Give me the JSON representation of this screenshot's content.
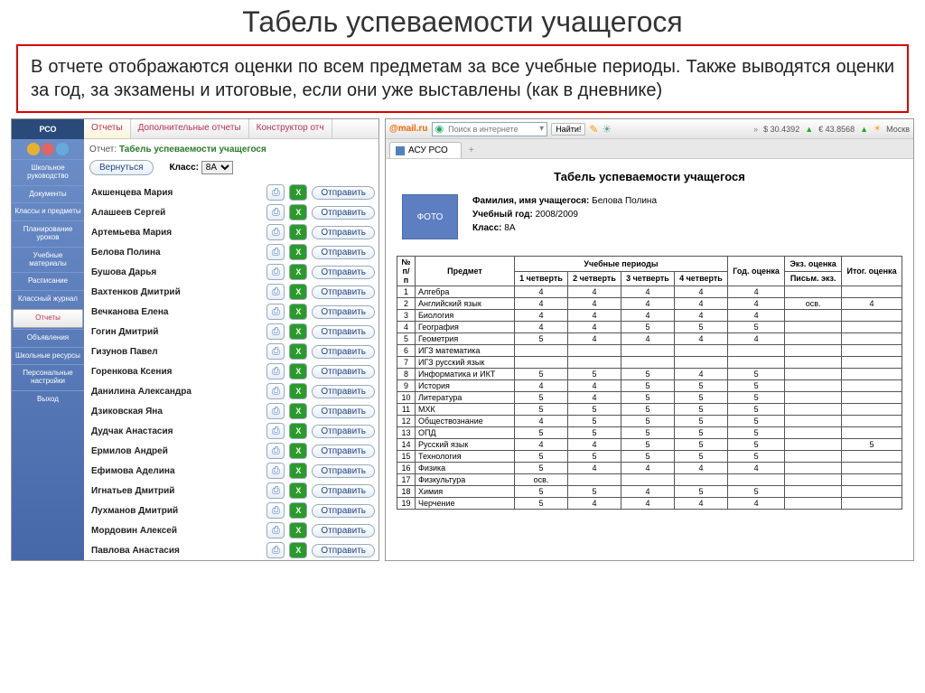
{
  "page_title": "Табель успеваемости учащегося",
  "description": "В отчете отображаются оценки по всем предметам за все учебные периоды. Также выводятся оценки за год, за экзамены и итоговые, если они уже выставлены (как в дневнике)",
  "sidebar": {
    "logo": "РСО",
    "items": [
      {
        "label": "Школьное руководство"
      },
      {
        "label": "Документы"
      },
      {
        "label": "Классы и предметы"
      },
      {
        "label": "Планирование уроков"
      },
      {
        "label": "Учебные материалы"
      },
      {
        "label": "Расписание"
      },
      {
        "label": "Классный журнал"
      },
      {
        "label": "Отчеты",
        "active": true
      },
      {
        "label": "Объявления"
      },
      {
        "label": "Школьные ресурсы"
      },
      {
        "label": "Персональные настройки"
      },
      {
        "label": "Выход"
      }
    ]
  },
  "top_tabs": [
    {
      "label": "Отчеты",
      "active": true
    },
    {
      "label": "Дополнительные отчеты"
    },
    {
      "label": "Конструктор отч"
    }
  ],
  "report_label": "Отчет:",
  "report_name": "Табель успеваемости учащегося",
  "back_btn": "Вернуться",
  "class_label": "Класс:",
  "class_value": "8А",
  "send_label": "Отправить",
  "students": [
    "Акшенцева Мария",
    "Алашеев Сергей",
    "Артемьева Мария",
    "Белова Полина",
    "Бушова Дарья",
    "Вахтенков Дмитрий",
    "Вечканова Елена",
    "Гогин Дмитрий",
    "Гизунов Павел",
    "Горенкова Ксения",
    "Данилина Александра",
    "Дзиковская Яна",
    "Дудчак Анастасия",
    "Ермилов Андрей",
    "Ефимова Аделина",
    "Игнатьев Дмитрий",
    "Лухманов Дмитрий",
    "Мордовин Алексей",
    "Павлова Анастасия"
  ],
  "browser": {
    "mail_logo": "@mail.ru",
    "search_placeholder": "Поиск в интернете",
    "find_btn": "Найти!",
    "usd": "$ 30.4392",
    "eur": "€ 43.8568",
    "weather": "Москв",
    "tab_name": "АСУ РСО"
  },
  "report": {
    "title": "Табель успеваемости учащегося",
    "photo": "ФОТО",
    "name_lbl": "Фамилия, имя учащегося:",
    "name_val": "Белова Полина",
    "year_lbl": "Учебный год:",
    "year_val": "2008/2009",
    "class_lbl": "Класс:",
    "class_val": "8А"
  },
  "table": {
    "headers": {
      "num": "№ п/п",
      "subject": "Предмет",
      "periods": "Учебные периоды",
      "q1": "1 четверть",
      "q2": "2 четверть",
      "q3": "3 четверть",
      "q4": "4 четверть",
      "year": "Год. оценка",
      "exam": "Экз. оценка",
      "exam_sub": "Письм. экз.",
      "final": "Итог. оценка"
    },
    "rows": [
      {
        "n": "1",
        "s": "Алгебра",
        "g": [
          "4",
          "4",
          "4",
          "4",
          "4",
          "",
          ""
        ]
      },
      {
        "n": "2",
        "s": "Английский язык",
        "g": [
          "4",
          "4",
          "4",
          "4",
          "4",
          "осв.",
          "4"
        ]
      },
      {
        "n": "3",
        "s": "Биология",
        "g": [
          "4",
          "4",
          "4",
          "4",
          "4",
          "",
          ""
        ]
      },
      {
        "n": "4",
        "s": "География",
        "g": [
          "4",
          "4",
          "5",
          "5",
          "5",
          "",
          ""
        ]
      },
      {
        "n": "5",
        "s": "Геометрия",
        "g": [
          "5",
          "4",
          "4",
          "4",
          "4",
          "",
          ""
        ]
      },
      {
        "n": "6",
        "s": "ИГЗ математика",
        "g": [
          "",
          "",
          "",
          "",
          "",
          "",
          ""
        ]
      },
      {
        "n": "7",
        "s": "ИГЗ русский язык",
        "g": [
          "",
          "",
          "",
          "",
          "",
          "",
          ""
        ]
      },
      {
        "n": "8",
        "s": "Информатика и ИКТ",
        "g": [
          "5",
          "5",
          "5",
          "4",
          "5",
          "",
          ""
        ]
      },
      {
        "n": "9",
        "s": "История",
        "g": [
          "4",
          "4",
          "5",
          "5",
          "5",
          "",
          ""
        ]
      },
      {
        "n": "10",
        "s": "Литература",
        "g": [
          "5",
          "4",
          "5",
          "5",
          "5",
          "",
          ""
        ]
      },
      {
        "n": "11",
        "s": "МХК",
        "g": [
          "5",
          "5",
          "5",
          "5",
          "5",
          "",
          ""
        ]
      },
      {
        "n": "12",
        "s": "Обществознание",
        "g": [
          "4",
          "5",
          "5",
          "5",
          "5",
          "",
          ""
        ]
      },
      {
        "n": "13",
        "s": "ОПД",
        "g": [
          "5",
          "5",
          "5",
          "5",
          "5",
          "",
          ""
        ]
      },
      {
        "n": "14",
        "s": "Русский язык",
        "g": [
          "4",
          "4",
          "5",
          "5",
          "5",
          "",
          "5"
        ]
      },
      {
        "n": "15",
        "s": "Технология",
        "g": [
          "5",
          "5",
          "5",
          "5",
          "5",
          "",
          ""
        ]
      },
      {
        "n": "16",
        "s": "Физика",
        "g": [
          "5",
          "4",
          "4",
          "4",
          "4",
          "",
          ""
        ]
      },
      {
        "n": "17",
        "s": "Физкультура",
        "g": [
          "осв.",
          "",
          "",
          "",
          "",
          "",
          ""
        ]
      },
      {
        "n": "18",
        "s": "Химия",
        "g": [
          "5",
          "5",
          "4",
          "5",
          "5",
          "",
          ""
        ]
      },
      {
        "n": "19",
        "s": "Черчение",
        "g": [
          "5",
          "4",
          "4",
          "4",
          "4",
          "",
          ""
        ]
      }
    ]
  }
}
